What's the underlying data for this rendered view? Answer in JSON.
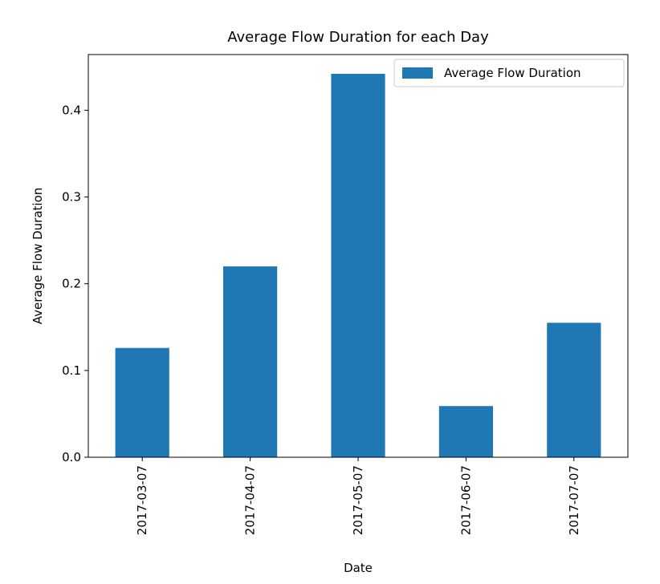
{
  "chart_data": {
    "type": "bar",
    "title": "Average Flow Duration for each Day",
    "xlabel": "Date",
    "ylabel": "Average Flow Duration",
    "categories": [
      "2017-03-07",
      "2017-04-07",
      "2017-05-07",
      "2017-06-07",
      "2017-07-07"
    ],
    "series": [
      {
        "name": "Average Flow Duration",
        "values": [
          0.126,
          0.22,
          0.442,
          0.059,
          0.155
        ],
        "color": "#1f77b4"
      }
    ],
    "ylim": [
      0,
      0.4642
    ],
    "yticks": [
      0.0,
      0.1,
      0.2,
      0.3,
      0.4
    ],
    "ytick_labels": [
      "0.0",
      "0.1",
      "0.2",
      "0.3",
      "0.4"
    ],
    "legend": "top-right",
    "grid": false
  }
}
